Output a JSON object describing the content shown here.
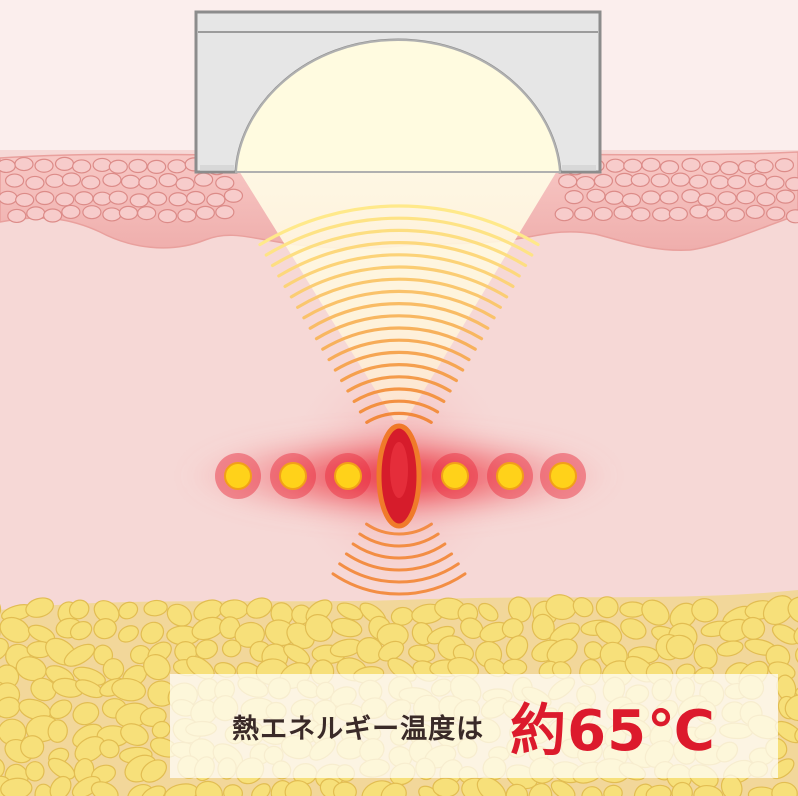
{
  "colors": {
    "skin_background": "#f6d8d6",
    "epidermis": "#f2b3b1",
    "cell_fill": "#f7cccb",
    "cell_stroke": "#dc8b88",
    "fat_cell": "#f7e07a",
    "wave_near": "#ffe98a",
    "wave_far": "#f28a3c",
    "focal_point": "#d61c2b",
    "glow": "#e8283a",
    "dot_core": "#ffd21a",
    "transducer": "#e8e8e8",
    "caption_value": "#dc1a2c"
  },
  "caption": {
    "label": "熱エネルギー温度は",
    "value": "約65℃"
  }
}
